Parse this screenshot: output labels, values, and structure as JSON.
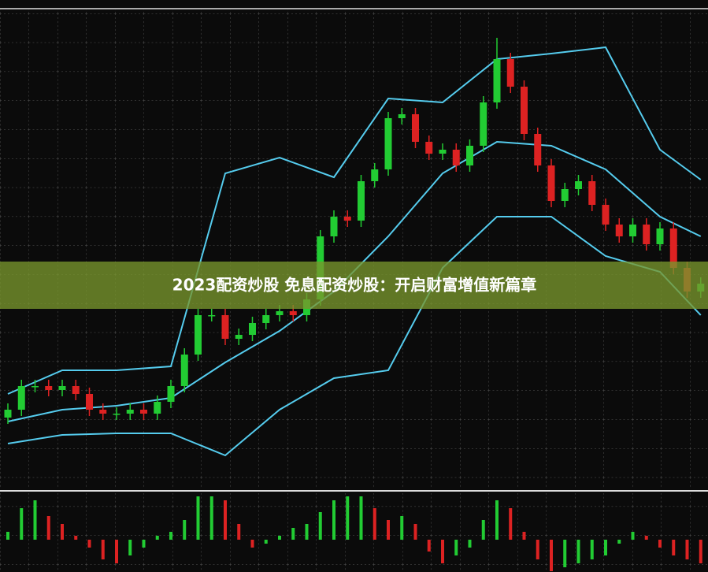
{
  "chart_data": [
    {
      "type": "candlestick",
      "title": "2023配资炒股 免息配资炒股：开启财富增值新篇章",
      "ylim": [
        0,
        608
      ],
      "up_color": "#22cc33",
      "down_color": "#dd2222",
      "open": [
        90,
        100,
        130,
        130,
        125,
        130,
        120,
        100,
        95,
        95,
        100,
        95,
        110,
        130,
        170,
        220,
        220,
        190,
        195,
        210,
        220,
        225,
        220,
        240,
        320,
        345,
        340,
        390,
        405,
        470,
        475,
        440,
        425,
        430,
        410,
        435,
        490,
        545,
        510,
        450,
        410,
        365,
        380,
        390,
        360,
        335,
        320,
        335,
        310,
        330,
        280,
        250
      ],
      "high": [
        108,
        138,
        138,
        138,
        138,
        138,
        128,
        108,
        103,
        108,
        108,
        118,
        138,
        178,
        228,
        228,
        228,
        203,
        218,
        228,
        233,
        233,
        248,
        328,
        353,
        353,
        398,
        413,
        478,
        483,
        483,
        448,
        438,
        438,
        443,
        498,
        572,
        553,
        518,
        458,
        418,
        388,
        398,
        398,
        368,
        343,
        343,
        343,
        338,
        338,
        288,
        268
      ],
      "low": [
        82,
        92,
        122,
        117,
        117,
        112,
        92,
        87,
        87,
        87,
        87,
        87,
        102,
        122,
        162,
        212,
        182,
        182,
        187,
        202,
        212,
        212,
        212,
        232,
        312,
        332,
        332,
        382,
        397,
        462,
        432,
        417,
        417,
        402,
        402,
        427,
        482,
        502,
        442,
        402,
        357,
        357,
        372,
        352,
        327,
        312,
        312,
        302,
        302,
        272,
        242,
        242
      ],
      "close": [
        100,
        130,
        130,
        125,
        130,
        120,
        100,
        95,
        95,
        100,
        95,
        110,
        130,
        170,
        220,
        220,
        190,
        195,
        210,
        220,
        225,
        220,
        240,
        320,
        345,
        340,
        390,
        405,
        470,
        475,
        440,
        425,
        430,
        410,
        435,
        490,
        545,
        510,
        450,
        410,
        365,
        380,
        390,
        360,
        335,
        320,
        335,
        310,
        330,
        280,
        250,
        260
      ],
      "band_x": [
        0,
        4,
        8,
        12,
        16,
        20,
        24,
        28,
        32,
        36,
        40,
        44,
        48,
        51
      ],
      "band_color": "#55ccee",
      "bands": [
        [
          120,
          150,
          150,
          155,
          400,
          420,
          395,
          495,
          490,
          545,
          552,
          560,
          430,
          392
        ],
        [
          85,
          100,
          105,
          115,
          160,
          200,
          250,
          320,
          400,
          440,
          435,
          405,
          345,
          320
        ],
        [
          57,
          68,
          70,
          70,
          42,
          100,
          140,
          150,
          280,
          345,
          345,
          295,
          275,
          220
        ]
      ]
    },
    {
      "type": "histogram-oscillator",
      "ylim": [
        -41,
        57
      ],
      "up_color": "#22cc33",
      "down_color": "#dd2222",
      "values": [
        10,
        40,
        50,
        30,
        20,
        5,
        -10,
        -25,
        -30,
        -20,
        -10,
        5,
        10,
        25,
        55,
        55,
        50,
        20,
        -10,
        -5,
        5,
        15,
        20,
        35,
        50,
        55,
        55,
        40,
        25,
        30,
        20,
        -15,
        -30,
        -20,
        -10,
        25,
        50,
        40,
        10,
        -25,
        -40,
        -35,
        -30,
        -25,
        -20,
        -5,
        10,
        5,
        -10,
        -20,
        -25,
        -30
      ]
    }
  ]
}
